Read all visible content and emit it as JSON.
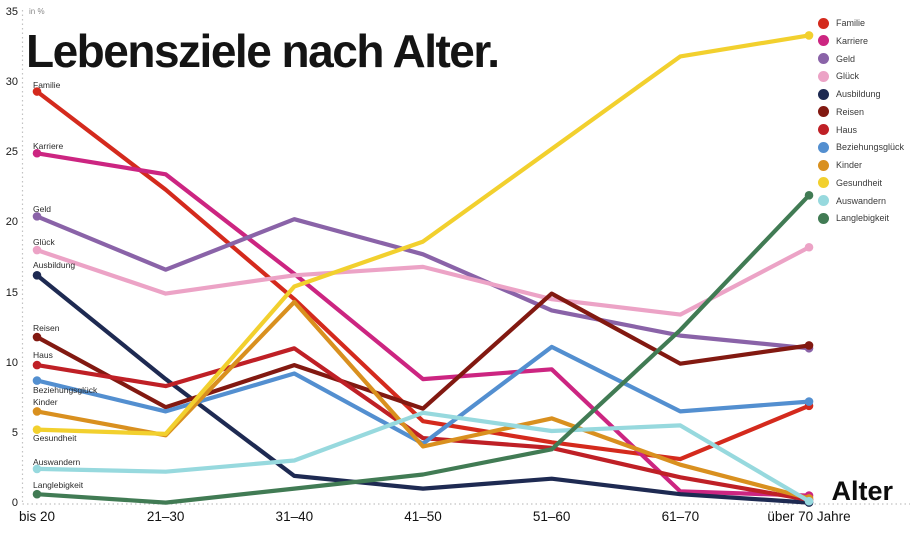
{
  "title": {
    "text": "Lebensziele nach Alter."
  },
  "y_axis": {
    "unit_label": "in %",
    "tick_values": [
      35,
      30,
      25,
      20,
      15,
      10,
      5,
      0
    ]
  },
  "x_axis": {
    "title": "Alter",
    "categories": [
      "bis 20",
      "21–30",
      "31–40",
      "41–50",
      "51–60",
      "61–70",
      "über 70 Jahre"
    ]
  },
  "chart_data": {
    "type": "line",
    "title": "Lebensziele nach Alter.",
    "ylabel": "in %",
    "xlabel": "Alter",
    "ylim": [
      0,
      35
    ],
    "grid": "dotted left y-axis and dotted zero baseline only",
    "legend_position": "top-right",
    "categories": [
      "bis 20",
      "21–30",
      "31–40",
      "41–50",
      "51–60",
      "61–70",
      "über 70 Jahre"
    ],
    "series": [
      {
        "name": "Familie",
        "color": "#d42a1d",
        "values": [
          29.4,
          22.4,
          14.6,
          5.9,
          4.4,
          3.2,
          7.0
        ]
      },
      {
        "name": "Karriere",
        "color": "#cc2581",
        "values": [
          25.0,
          23.5,
          16.4,
          8.9,
          9.6,
          0.9,
          0.6
        ]
      },
      {
        "name": "Geld",
        "color": "#8a63a8",
        "values": [
          20.5,
          16.7,
          20.3,
          17.8,
          13.8,
          12.0,
          11.1
        ]
      },
      {
        "name": "Glück",
        "color": "#eca3c6",
        "values": [
          18.1,
          15.0,
          16.3,
          16.9,
          14.6,
          13.5,
          18.3
        ]
      },
      {
        "name": "Ausbildung",
        "color": "#1e2a52",
        "values": [
          16.3,
          8.9,
          2.0,
          1.1,
          1.8,
          0.7,
          0.1
        ]
      },
      {
        "name": "Reisen",
        "color": "#821911",
        "values": [
          11.9,
          6.9,
          9.9,
          6.8,
          15.0,
          10.0,
          11.3
        ]
      },
      {
        "name": "Haus",
        "color": "#bf2026",
        "values": [
          9.9,
          8.4,
          11.1,
          4.7,
          4.0,
          1.9,
          0.3
        ]
      },
      {
        "name": "Beziehungsglück",
        "color": "#538fd0",
        "values": [
          8.8,
          6.6,
          9.3,
          4.3,
          11.2,
          6.6,
          7.3
        ]
      },
      {
        "name": "Kinder",
        "color": "#d9901f",
        "values": [
          6.6,
          4.9,
          14.4,
          4.1,
          6.1,
          2.8,
          0.4
        ]
      },
      {
        "name": "Gesundheit",
        "color": "#f2d02e",
        "values": [
          5.3,
          5.0,
          15.5,
          18.7,
          25.3,
          31.9,
          33.4
        ]
      },
      {
        "name": "Auswandern",
        "color": "#97d9de",
        "values": [
          2.5,
          2.3,
          3.1,
          6.5,
          5.2,
          5.6,
          0.2
        ]
      },
      {
        "name": "Langlebigkeit",
        "color": "#417b54",
        "values": [
          0.7,
          0.1,
          1.1,
          2.1,
          3.9,
          12.4,
          22.0
        ]
      }
    ]
  }
}
